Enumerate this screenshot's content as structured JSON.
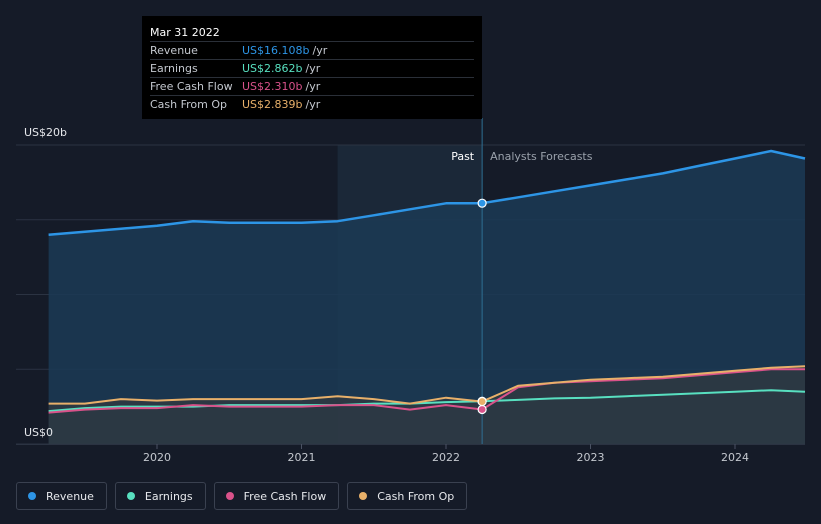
{
  "chart_data": {
    "type": "line",
    "y_axis_labels": [
      "US$20b",
      "US$0"
    ],
    "ylim": [
      0,
      20
    ],
    "x_ticks": [
      "2020",
      "2021",
      "2022",
      "2023",
      "2024"
    ],
    "x_tick_values": [
      2020,
      2021,
      2022,
      2023,
      2024
    ],
    "xlim": [
      2018.8,
      2024.5
    ],
    "past_label": "Past",
    "forecast_label": "Analysts Forecasts",
    "divider_x": 2022.25,
    "highlight_start_x": 2021.25,
    "grid": true,
    "series": [
      {
        "name": "Revenue",
        "color": "#2d95e6",
        "x": [
          2019.25,
          2019.5,
          2019.75,
          2020.0,
          2020.25,
          2020.5,
          2020.75,
          2021.0,
          2021.25,
          2021.5,
          2021.75,
          2022.0,
          2022.25,
          2022.5,
          2022.75,
          2023.0,
          2023.25,
          2023.5,
          2023.75,
          2024.0,
          2024.25,
          2024.5
        ],
        "y": [
          14.0,
          14.2,
          14.4,
          14.6,
          14.9,
          14.8,
          14.8,
          14.8,
          14.9,
          15.3,
          15.7,
          16.1,
          16.108,
          16.5,
          16.9,
          17.3,
          17.7,
          18.1,
          18.6,
          19.1,
          19.6,
          19.1
        ]
      },
      {
        "name": "Earnings",
        "color": "#58e0c0",
        "x": [
          2019.25,
          2019.5,
          2019.75,
          2020.0,
          2020.25,
          2020.5,
          2020.75,
          2021.0,
          2021.25,
          2021.5,
          2021.75,
          2022.0,
          2022.25,
          2022.5,
          2022.75,
          2023.0,
          2023.25,
          2023.5,
          2023.75,
          2024.0,
          2024.25,
          2024.5
        ],
        "y": [
          2.2,
          2.4,
          2.5,
          2.5,
          2.5,
          2.6,
          2.6,
          2.6,
          2.6,
          2.7,
          2.7,
          2.8,
          2.862,
          2.95,
          3.05,
          3.1,
          3.2,
          3.3,
          3.4,
          3.5,
          3.6,
          3.5
        ]
      },
      {
        "name": "Free Cash Flow",
        "color": "#d9528a",
        "x": [
          2019.25,
          2019.5,
          2019.75,
          2020.0,
          2020.25,
          2020.5,
          2020.75,
          2021.0,
          2021.25,
          2021.5,
          2021.75,
          2022.0,
          2022.25,
          2022.5,
          2022.75,
          2023.0,
          2023.25,
          2023.5,
          2023.75,
          2024.0,
          2024.25,
          2024.5
        ],
        "y": [
          2.1,
          2.3,
          2.4,
          2.4,
          2.6,
          2.5,
          2.5,
          2.5,
          2.6,
          2.6,
          2.3,
          2.6,
          2.31,
          3.8,
          4.1,
          4.2,
          4.3,
          4.4,
          4.6,
          4.8,
          5.0,
          5.0
        ]
      },
      {
        "name": "Cash From Op",
        "color": "#e8b06a",
        "x": [
          2019.25,
          2019.5,
          2019.75,
          2020.0,
          2020.25,
          2020.5,
          2020.75,
          2021.0,
          2021.25,
          2021.5,
          2021.75,
          2022.0,
          2022.25,
          2022.5,
          2022.75,
          2023.0,
          2023.25,
          2023.5,
          2023.75,
          2024.0,
          2024.25,
          2024.5
        ],
        "y": [
          2.7,
          2.7,
          3.0,
          2.9,
          3.0,
          3.0,
          3.0,
          3.0,
          3.2,
          3.0,
          2.7,
          3.1,
          2.839,
          3.9,
          4.1,
          4.3,
          4.4,
          4.5,
          4.7,
          4.9,
          5.1,
          5.2
        ]
      }
    ],
    "tooltip": {
      "date": "Mar 31 2022",
      "rows": [
        {
          "label": "Revenue",
          "value": "US$16.108b",
          "unit": "/yr",
          "color": "#2d95e6"
        },
        {
          "label": "Earnings",
          "value": "US$2.862b",
          "unit": "/yr",
          "color": "#58e0c0"
        },
        {
          "label": "Free Cash Flow",
          "value": "US$2.310b",
          "unit": "/yr",
          "color": "#d9528a"
        },
        {
          "label": "Cash From Op",
          "value": "US$2.839b",
          "unit": "/yr",
          "color": "#e8b06a"
        }
      ]
    },
    "legend": [
      {
        "label": "Revenue",
        "color": "#2d95e6"
      },
      {
        "label": "Earnings",
        "color": "#58e0c0"
      },
      {
        "label": "Free Cash Flow",
        "color": "#d9528a"
      },
      {
        "label": "Cash From Op",
        "color": "#e8b06a"
      }
    ]
  }
}
